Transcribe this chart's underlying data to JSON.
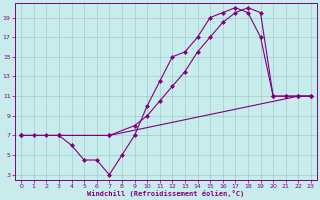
{
  "xlabel": "Windchill (Refroidissement éolien,°C)",
  "background_color": "#c8ecec",
  "grid_color": "#b0d8d8",
  "line_color": "#800080",
  "xlim": [
    -0.5,
    23.5
  ],
  "ylim": [
    2.5,
    20.5
  ],
  "xticks": [
    0,
    1,
    2,
    3,
    4,
    5,
    6,
    7,
    8,
    9,
    10,
    11,
    12,
    13,
    14,
    15,
    16,
    17,
    18,
    19,
    20,
    21,
    22,
    23
  ],
  "yticks": [
    3,
    5,
    7,
    9,
    11,
    13,
    15,
    17,
    19
  ],
  "line1_x": [
    0,
    1,
    2,
    3,
    4,
    5,
    6,
    7,
    8,
    9,
    10,
    11,
    12,
    13,
    14,
    15,
    16,
    17,
    18,
    19,
    20,
    21,
    22,
    23
  ],
  "line1_y": [
    7,
    7,
    7,
    7,
    6,
    4.5,
    4.5,
    3,
    5,
    7,
    10,
    12.5,
    15,
    15.5,
    17,
    19,
    19.5,
    20,
    19.5,
    17,
    11,
    11,
    11,
    11
  ],
  "line2_x": [
    0,
    3,
    7,
    22,
    23
  ],
  "line2_y": [
    7,
    7,
    7,
    11,
    11
  ],
  "line3_x": [
    0,
    3,
    7,
    9,
    10,
    11,
    12,
    13,
    14,
    15,
    16,
    17,
    18,
    19,
    20,
    21,
    22,
    23
  ],
  "line3_y": [
    7,
    7,
    7,
    8,
    9,
    10.5,
    12,
    13.5,
    15.5,
    17,
    18.5,
    19.5,
    20,
    19.5,
    11,
    11,
    11,
    11
  ]
}
